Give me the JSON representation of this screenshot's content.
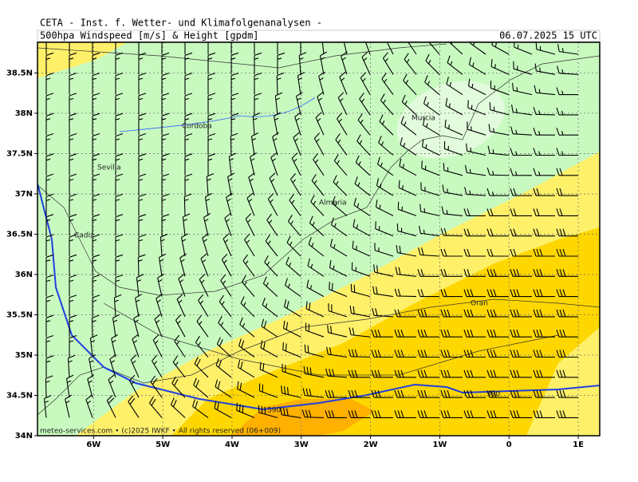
{
  "header": {
    "title": "CETA - Inst. f. Wetter- und Klimafolgenanalysen -",
    "subtitle": "500hpa Windspeed [m/s] & Height [gpdm]",
    "valid_time": "06.07.2025 15 UTC"
  },
  "map": {
    "xlim": [
      -6.81,
      1.31
    ],
    "ylim": [
      34,
      38.88
    ],
    "lat_ticks": [
      {
        "value": 34,
        "label": "34N"
      },
      {
        "value": 34.5,
        "label": "34.5N"
      },
      {
        "value": 35,
        "label": "35N"
      },
      {
        "value": 35.5,
        "label": "35.5N"
      },
      {
        "value": 36,
        "label": "36N"
      },
      {
        "value": 36.5,
        "label": "36.5N"
      },
      {
        "value": 37,
        "label": "37N"
      },
      {
        "value": 37.5,
        "label": "37.5N"
      },
      {
        "value": 38,
        "label": "38N"
      },
      {
        "value": 38.5,
        "label": "38.5N"
      }
    ],
    "lon_ticks": [
      {
        "value": -6,
        "label": "6W"
      },
      {
        "value": -5,
        "label": "5W"
      },
      {
        "value": -4,
        "label": "4W"
      },
      {
        "value": -3,
        "label": "3W"
      },
      {
        "value": -2,
        "label": "2W"
      },
      {
        "value": -1,
        "label": "1W"
      },
      0,
      {
        "value": 1,
        "label": "1E"
      }
    ],
    "places": [
      "Cordoba",
      "Sevilla",
      "Cadiz",
      "Almeria",
      "Murcia",
      "Oran"
    ],
    "contour_labels": [
      "590",
      "590"
    ]
  },
  "footer": "meteo-services.com • (c)2025 IWKF • All rights reserved (06+009)"
}
